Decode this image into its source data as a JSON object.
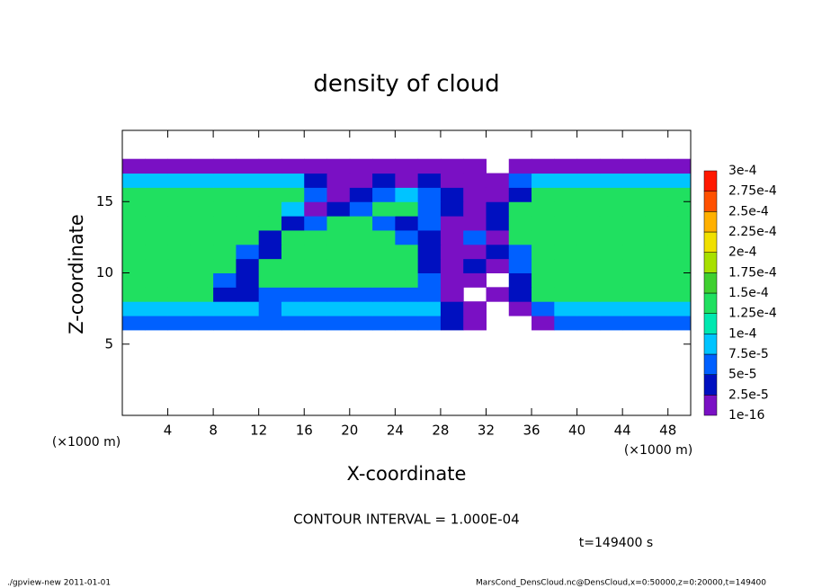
{
  "chart_data": {
    "type": "heatmap",
    "title": "density of cloud",
    "x_label": "X-coordinate",
    "y_label": "Z-coordinate",
    "x_unit": "(×1000 m)",
    "y_unit": "(×1000 m)",
    "xlim": [
      0,
      50
    ],
    "ylim": [
      0,
      20
    ],
    "xticks": [
      4,
      8,
      12,
      16,
      20,
      24,
      28,
      32,
      36,
      40,
      44,
      48
    ],
    "yticks": [
      5,
      10,
      15
    ],
    "x_edges": [
      0,
      2,
      4,
      6,
      8,
      10,
      12,
      14,
      16,
      18,
      20,
      22,
      24,
      26,
      28,
      30,
      32,
      34,
      36,
      38,
      40,
      42,
      44,
      46,
      48,
      50
    ],
    "z_edges": [
      6,
      7,
      8,
      9,
      10,
      11,
      12,
      13,
      14,
      15,
      16,
      17,
      18
    ],
    "values": [
      [
        6e-05,
        6e-05,
        6e-05,
        6e-05,
        6e-05,
        6e-05,
        6e-05,
        6e-05,
        6e-05,
        6e-05,
        6e-05,
        6e-05,
        6e-05,
        6e-05,
        3e-05,
        1e-05,
        null,
        null,
        1e-05,
        6e-05,
        6e-05,
        6e-05,
        6e-05,
        6e-05,
        6e-05
      ],
      [
        9e-05,
        9e-05,
        9e-05,
        9e-05,
        9e-05,
        9e-05,
        6e-05,
        9e-05,
        9e-05,
        9e-05,
        9e-05,
        9e-05,
        9e-05,
        9e-05,
        3e-05,
        1e-05,
        null,
        1e-05,
        6e-05,
        9e-05,
        9e-05,
        9e-05,
        9e-05,
        9e-05,
        9e-05
      ],
      [
        0.00013,
        0.00013,
        0.00013,
        0.00013,
        3e-05,
        3e-05,
        6e-05,
        6e-05,
        6e-05,
        6e-05,
        6e-05,
        6e-05,
        6e-05,
        6e-05,
        1e-05,
        null,
        1e-05,
        3e-05,
        0.00013,
        0.00013,
        0.00013,
        0.00013,
        0.00013,
        0.00013,
        0.00013
      ],
      [
        0.00013,
        0.00013,
        0.00013,
        0.00013,
        6e-05,
        3e-05,
        0.00013,
        0.00013,
        0.00013,
        0.00013,
        0.00013,
        0.00013,
        0.00013,
        6e-05,
        1e-05,
        1e-05,
        null,
        3e-05,
        0.00013,
        0.00013,
        0.00013,
        0.00013,
        0.00013,
        0.00013,
        0.00013
      ],
      [
        0.00013,
        0.00013,
        0.00013,
        0.00013,
        0.00013,
        3e-05,
        0.00013,
        0.00013,
        0.00013,
        0.00013,
        0.00013,
        0.00013,
        0.00013,
        3e-05,
        1e-05,
        3e-05,
        1e-05,
        6e-05,
        0.00013,
        0.00013,
        0.00013,
        0.00013,
        0.00013,
        0.00013,
        0.00013
      ],
      [
        0.00013,
        0.00013,
        0.00013,
        0.00013,
        0.00013,
        6e-05,
        3e-05,
        0.00013,
        0.00013,
        0.00013,
        0.00013,
        0.00013,
        0.00013,
        3e-05,
        1e-05,
        1e-05,
        3e-05,
        6e-05,
        0.00013,
        0.00013,
        0.00013,
        0.00013,
        0.00013,
        0.00013,
        0.00013
      ],
      [
        0.00013,
        0.00013,
        0.00013,
        0.00013,
        0.00013,
        0.00013,
        3e-05,
        0.00013,
        0.00013,
        0.00013,
        0.00013,
        0.00013,
        6e-05,
        3e-05,
        1e-05,
        6e-05,
        1e-05,
        0.00013,
        0.00013,
        0.00013,
        0.00013,
        0.00013,
        0.00013,
        0.00013,
        0.00013
      ],
      [
        0.00013,
        0.00013,
        0.00013,
        0.00013,
        0.00013,
        0.00013,
        0.00013,
        3e-05,
        6e-05,
        0.00013,
        0.00013,
        6e-05,
        3e-05,
        6e-05,
        1e-05,
        1e-05,
        3e-05,
        0.00013,
        0.00013,
        0.00013,
        0.00013,
        0.00013,
        0.00013,
        0.00013,
        0.00013
      ],
      [
        0.00013,
        0.00013,
        0.00013,
        0.00013,
        0.00013,
        0.00013,
        0.00013,
        9e-05,
        1e-05,
        3e-05,
        6e-05,
        0.00013,
        0.00013,
        6e-05,
        3e-05,
        1e-05,
        3e-05,
        0.00013,
        0.00013,
        0.00013,
        0.00013,
        0.00013,
        0.00013,
        0.00013,
        0.00013
      ],
      [
        0.00013,
        0.00013,
        0.00013,
        0.00013,
        0.00013,
        0.00013,
        0.00013,
        0.00013,
        6e-05,
        1e-05,
        3e-05,
        6e-05,
        9e-05,
        6e-05,
        3e-05,
        1e-05,
        1e-05,
        3e-05,
        0.00013,
        0.00013,
        0.00013,
        0.00013,
        0.00013,
        0.00013,
        0.00013
      ],
      [
        9e-05,
        9e-05,
        9e-05,
        9e-05,
        9e-05,
        9e-05,
        9e-05,
        9e-05,
        3e-05,
        1e-05,
        1e-05,
        3e-05,
        1e-05,
        3e-05,
        1e-05,
        1e-05,
        1e-05,
        6e-05,
        9e-05,
        9e-05,
        9e-05,
        9e-05,
        9e-05,
        9e-05,
        9e-05
      ],
      [
        1e-05,
        1e-05,
        1e-05,
        1e-05,
        1e-05,
        1e-05,
        1e-05,
        1e-05,
        1e-05,
        1e-05,
        1e-05,
        1e-05,
        1e-05,
        1e-05,
        1e-05,
        1e-05,
        null,
        1e-05,
        1e-05,
        1e-05,
        1e-05,
        1e-05,
        1e-05,
        1e-05,
        1e-05
      ]
    ],
    "colorbar": {
      "levels": [
        1e-16,
        {
          "value": 2.5e-05,
          "label": "2.5e-5"
        },
        {
          "value": 5e-05,
          "label": "5e-5"
        },
        {
          "value": 7.5e-05,
          "label": "7.5e-5"
        },
        {
          "value": 0.0001,
          "label": "1e-4"
        },
        {
          "value": 0.000125,
          "label": "1.25e-4"
        },
        {
          "value": 0.00015,
          "label": "1.5e-4"
        },
        {
          "value": 0.000175,
          "label": "1.75e-4"
        },
        {
          "value": 0.0002,
          "label": "2e-4"
        },
        {
          "value": 0.000225,
          "label": "2.25e-4"
        },
        {
          "value": 0.00025,
          "label": "2.5e-4"
        },
        {
          "value": 0.000275,
          "label": "2.75e-4"
        },
        {
          "value": 0.0003,
          "label": "3e-4"
        }
      ],
      "colors": [
        "#7a10c4",
        "#0010c0",
        "#0060ff",
        "#00c4ff",
        "#00e8b0",
        "#20e060",
        "#40d030",
        "#a8e000",
        "#f0e000",
        "#ffb000",
        "#ff5000",
        "#ff1800",
        "#ff8080"
      ]
    },
    "contour_interval": "CONTOUR INTERVAL = 1.000E-04",
    "time_label": "t=149400 s",
    "footer_left": "./gpview-new  2011-01-01",
    "footer_right": "MarsCond_DensCloud.nc@DensCloud,x=0:50000,z=0:20000,t=149400"
  }
}
